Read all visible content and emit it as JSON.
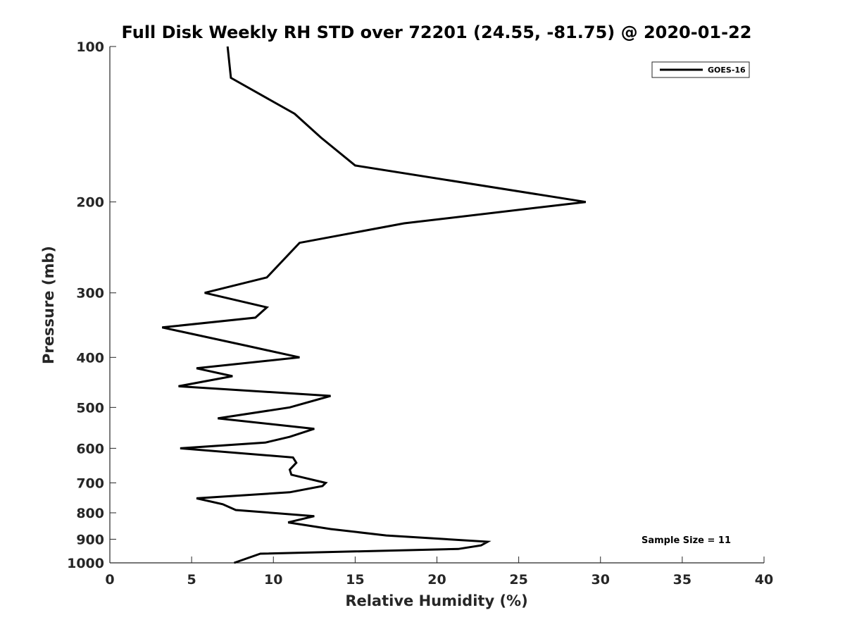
{
  "chart_data": {
    "type": "line",
    "title": "Full Disk Weekly RH STD over 72201 (24.55, -81.75) @ 2020-01-22",
    "xlabel": "Relative Humidity (%)",
    "ylabel": "Pressure (mb)",
    "xlim": [
      0,
      40
    ],
    "ylim": [
      100,
      1000
    ],
    "yscale": "log",
    "y_reversed": true,
    "grid": false,
    "xticks": [
      0,
      5,
      10,
      15,
      20,
      25,
      30,
      35,
      40
    ],
    "yticks": [
      100,
      200,
      300,
      400,
      500,
      600,
      700,
      800,
      900,
      1000
    ],
    "legend": {
      "position": "top-right",
      "entries": [
        "GOES-16"
      ]
    },
    "annotations": [
      {
        "text": "Sample Size = 11",
        "position": "bottom-right"
      }
    ],
    "series": [
      {
        "name": "GOES-16",
        "color": "#000000",
        "x": [
          7.2,
          7.4,
          11.3,
          12.9,
          15.0,
          29.1,
          18.0,
          11.6,
          9.6,
          5.8,
          9.6,
          8.9,
          3.2,
          8.4,
          11.6,
          5.3,
          7.5,
          4.2,
          13.5,
          11.0,
          6.6,
          12.5,
          11.0,
          9.5,
          4.3,
          11.2,
          11.4,
          11.0,
          11.1,
          13.2,
          13.0,
          11.0,
          5.3,
          6.9,
          7.7,
          12.5,
          10.9,
          13.5,
          16.9,
          23.1,
          22.7,
          21.3,
          9.2,
          7.6
        ],
        "y": [
          100,
          115,
          135,
          150,
          170,
          200,
          220,
          240,
          280,
          300,
          320,
          335,
          350,
          380,
          400,
          420,
          435,
          455,
          475,
          500,
          525,
          550,
          570,
          585,
          600,
          625,
          640,
          660,
          675,
          700,
          710,
          730,
          750,
          770,
          790,
          812,
          835,
          860,
          885,
          910,
          925,
          940,
          960,
          1000
        ]
      }
    ]
  }
}
